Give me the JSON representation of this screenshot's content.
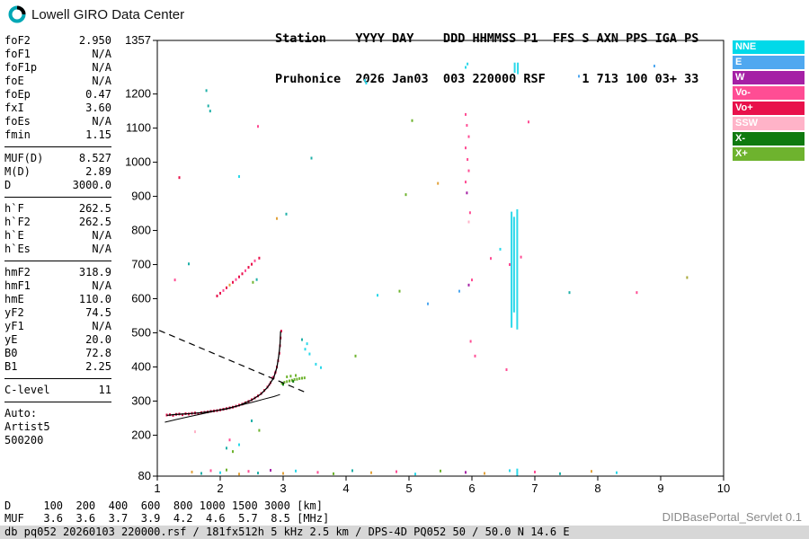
{
  "header": {
    "brand": "Lowell GIRO Data Center",
    "station_line1": "Station    YYYY DAY    DDD HHMMSS P1  FFS S AXN PPS IGA PS",
    "station_line2": "Pruhonice  2026 Jan03  003 220000 RSF     1 713 100 03+ 33"
  },
  "parameters": {
    "groups": [
      {
        "rows": [
          [
            "foF2",
            "2.950"
          ],
          [
            "foF1",
            "N/A"
          ],
          [
            "foF1p",
            "N/A"
          ],
          [
            "foE",
            "N/A"
          ],
          [
            "foEp",
            "0.47"
          ],
          [
            "fxI",
            "3.60"
          ],
          [
            "foEs",
            "N/A"
          ],
          [
            "fmin",
            "1.15"
          ]
        ]
      },
      {
        "rows": [
          [
            "MUF(D)",
            "8.527"
          ],
          [
            "M(D)",
            "2.89"
          ],
          [
            "D",
            "3000.0"
          ]
        ]
      },
      {
        "rows": [
          [
            "h`F",
            "262.5"
          ],
          [
            "h`F2",
            "262.5"
          ],
          [
            "h`E",
            "N/A"
          ],
          [
            "h`Es",
            "N/A"
          ]
        ]
      },
      {
        "rows": [
          [
            "hmF2",
            "318.9"
          ],
          [
            "hmF1",
            "N/A"
          ],
          [
            "hmE",
            "110.0"
          ],
          [
            "yF2",
            "74.5"
          ],
          [
            "yF1",
            "N/A"
          ],
          [
            "yE",
            "20.0"
          ],
          [
            "B0",
            "72.8"
          ],
          [
            "B1",
            "2.25"
          ]
        ]
      },
      {
        "rows": [
          [
            "C-level",
            "11"
          ]
        ]
      }
    ],
    "auto_lines": [
      "Auto:",
      "Artist5",
      "500200"
    ]
  },
  "legend": {
    "items": [
      {
        "label": "NNE",
        "color": "#00D9E9"
      },
      {
        "label": "E",
        "color": "#4FA8F0"
      },
      {
        "label": "W",
        "color": "#A520A5"
      },
      {
        "label": "Vo-",
        "color": "#FF4D94"
      },
      {
        "label": "Vo+",
        "color": "#E8114B"
      },
      {
        "label": "SSW",
        "color": "#FFB3C8"
      },
      {
        "label": "X-",
        "color": "#0F7A0F"
      },
      {
        "label": "X+",
        "color": "#6EB32E"
      }
    ]
  },
  "dmuf": {
    "rows": [
      {
        "label": "D",
        "values": [
          "100",
          "200",
          "400",
          "600",
          "800",
          "1000",
          "1500",
          "3000"
        ],
        "unit": "[km]"
      },
      {
        "label": "MUF",
        "values": [
          "3.6",
          "3.6",
          "3.7",
          "3.9",
          "4.2",
          "4.6",
          "5.7",
          "8.5"
        ],
        "unit": "[MHz]"
      }
    ]
  },
  "footer": {
    "status_bar": "db pq052 20260103 220000.rsf / 181fx512h 5 kHz 2.5 km / DPS-4D PQ052 50 / 50.0 N 14.6 E",
    "servlet_version": "DIDBasePortal_Servlet 0.1"
  },
  "chart_data": {
    "type": "scatter",
    "title": "Pruhonice ionogram 2026 Jan03 003 220000",
    "x_unit": "MHz",
    "y_unit": "km",
    "x_range": [
      1,
      10
    ],
    "y_range": [
      80,
      1357
    ],
    "x_ticks": [
      1,
      2,
      3,
      4,
      5,
      6,
      7,
      8,
      9,
      10
    ],
    "y_ticks": [
      1357,
      1200,
      1100,
      1000,
      900,
      800,
      700,
      600,
      500,
      400,
      300,
      200,
      80
    ],
    "grid": false,
    "legend_position": "right",
    "colors": {
      "c": "#2BD8EA",
      "b": "#4FA8F0",
      "m": "#A520A5",
      "p": "#FF4D94",
      "r": "#E8114B",
      "s": "#FFB3C8",
      "g": "#0F7A0F",
      "G": "#6EB32E",
      "t": "#1FB0A8",
      "o": "#E2A33C",
      "y": "#A8A838",
      "k": "#000000"
    },
    "o_trace_echoes": [
      [
        1.15,
        259,
        "r"
      ],
      [
        1.2,
        260,
        "r"
      ],
      [
        1.25,
        258,
        "r"
      ],
      [
        1.3,
        261,
        "r"
      ],
      [
        1.35,
        262,
        "r"
      ],
      [
        1.4,
        260,
        "r"
      ],
      [
        1.45,
        263,
        "r"
      ],
      [
        1.5,
        262,
        "r"
      ],
      [
        1.55,
        264,
        "r"
      ],
      [
        1.6,
        265,
        "r"
      ],
      [
        1.65,
        263,
        "r"
      ],
      [
        1.7,
        266,
        "r"
      ],
      [
        1.75,
        267,
        "r"
      ],
      [
        1.8,
        268,
        "r"
      ],
      [
        1.85,
        270,
        "r"
      ],
      [
        1.9,
        271,
        "r"
      ],
      [
        1.95,
        272,
        "r"
      ],
      [
        2.0,
        274,
        "r"
      ],
      [
        2.05,
        276,
        "r"
      ],
      [
        2.1,
        278,
        "r"
      ],
      [
        2.15,
        280,
        "r"
      ],
      [
        2.2,
        282,
        "r"
      ],
      [
        2.25,
        285,
        "r"
      ],
      [
        2.3,
        288,
        "r"
      ],
      [
        2.35,
        291,
        "r"
      ],
      [
        2.4,
        295,
        "r"
      ],
      [
        2.45,
        299,
        "r"
      ],
      [
        2.5,
        304,
        "r"
      ],
      [
        2.55,
        309,
        "r"
      ],
      [
        2.6,
        315,
        "r"
      ],
      [
        2.65,
        322,
        "r"
      ],
      [
        2.7,
        331,
        "r"
      ],
      [
        2.75,
        341,
        "r"
      ],
      [
        2.78,
        348,
        "p"
      ],
      [
        2.8,
        354,
        "r"
      ],
      [
        2.83,
        368,
        "p"
      ],
      [
        2.85,
        370,
        "r"
      ],
      [
        2.87,
        382,
        "p"
      ],
      [
        2.88,
        385,
        "r"
      ],
      [
        2.9,
        400,
        "r"
      ],
      [
        2.92,
        418,
        "r"
      ],
      [
        2.94,
        440,
        "r"
      ],
      [
        2.95,
        462,
        "r"
      ],
      [
        2.96,
        485,
        "r"
      ],
      [
        2.97,
        505,
        "r"
      ]
    ],
    "x_trace_echoes": [
      [
        2.98,
        352,
        "G"
      ],
      [
        3.0,
        349,
        "g"
      ],
      [
        3.02,
        355,
        "G"
      ],
      [
        3.06,
        357,
        "G"
      ],
      [
        3.06,
        371,
        "G"
      ],
      [
        3.1,
        359,
        "G"
      ],
      [
        3.12,
        373,
        "G"
      ],
      [
        3.14,
        361,
        "G"
      ],
      [
        3.16,
        358,
        "g"
      ],
      [
        3.18,
        363,
        "G"
      ],
      [
        3.2,
        375,
        "G"
      ],
      [
        3.22,
        364,
        "G"
      ],
      [
        3.26,
        366,
        "G"
      ],
      [
        3.3,
        367,
        "G"
      ],
      [
        3.34,
        368,
        "G"
      ]
    ],
    "noise_echoes": [
      [
        1.81,
        1165,
        "t"
      ],
      [
        1.84,
        1150,
        "t"
      ],
      [
        1.78,
        1210,
        "t"
      ],
      [
        2.6,
        1105,
        "p"
      ],
      [
        4.3,
        1240,
        "c"
      ],
      [
        4.32,
        1232,
        "c"
      ],
      [
        5.93,
        1288,
        "c"
      ],
      [
        5.9,
        1278,
        "c"
      ],
      [
        7.7,
        1252,
        "b"
      ],
      [
        8.9,
        1282,
        "b"
      ],
      [
        5.05,
        1122,
        "G"
      ],
      [
        6.9,
        1118,
        "p"
      ],
      [
        3.45,
        1012,
        "t"
      ],
      [
        2.3,
        958,
        "c"
      ],
      [
        1.35,
        955,
        "r"
      ],
      [
        5.46,
        938,
        "o"
      ],
      [
        4.95,
        905,
        "G"
      ],
      [
        5.9,
        1140,
        "p"
      ],
      [
        5.92,
        1108,
        "p"
      ],
      [
        5.95,
        1075,
        "p"
      ],
      [
        5.9,
        1042,
        "p"
      ],
      [
        5.93,
        1008,
        "p"
      ],
      [
        5.95,
        975,
        "p"
      ],
      [
        5.9,
        942,
        "p"
      ],
      [
        5.92,
        910,
        "m"
      ],
      [
        5.97,
        852,
        "p"
      ],
      [
        5.95,
        825,
        "s"
      ],
      [
        2.9,
        835,
        "o"
      ],
      [
        3.05,
        848,
        "t"
      ],
      [
        1.5,
        702,
        "t"
      ],
      [
        1.28,
        655,
        "p"
      ],
      [
        2.52,
        648,
        "G"
      ],
      [
        2.58,
        656,
        "t"
      ],
      [
        4.85,
        622,
        "G"
      ],
      [
        4.5,
        610,
        "c"
      ],
      [
        5.3,
        585,
        "b"
      ],
      [
        5.8,
        622,
        "b"
      ],
      [
        5.95,
        640,
        "m"
      ],
      [
        6.0,
        655,
        "p"
      ],
      [
        6.3,
        718,
        "p"
      ],
      [
        6.45,
        745,
        "c"
      ],
      [
        6.6,
        700,
        "p"
      ],
      [
        6.78,
        722,
        "p"
      ],
      [
        7.55,
        618,
        "t"
      ],
      [
        8.62,
        618,
        "p"
      ],
      [
        9.42,
        662,
        "y"
      ],
      [
        1.95,
        608,
        "r"
      ],
      [
        2.0,
        616,
        "r"
      ],
      [
        2.05,
        624,
        "p"
      ],
      [
        2.1,
        632,
        "r"
      ],
      [
        2.15,
        640,
        "o"
      ],
      [
        2.2,
        648,
        "r"
      ],
      [
        2.25,
        656,
        "p"
      ],
      [
        2.3,
        664,
        "r"
      ],
      [
        2.35,
        673,
        "r"
      ],
      [
        2.4,
        682,
        "p"
      ],
      [
        2.45,
        692,
        "r"
      ],
      [
        2.5,
        701,
        "r"
      ],
      [
        2.55,
        711,
        "p"
      ],
      [
        2.62,
        719,
        "r"
      ],
      [
        3.35,
        452,
        "c"
      ],
      [
        3.42,
        438,
        "c"
      ],
      [
        3.38,
        468,
        "c"
      ],
      [
        3.3,
        480,
        "t"
      ],
      [
        4.15,
        432,
        "G"
      ],
      [
        6.55,
        392,
        "p"
      ],
      [
        6.05,
        432,
        "p"
      ],
      [
        5.98,
        475,
        "p"
      ],
      [
        3.6,
        398,
        "c"
      ],
      [
        3.52,
        408,
        "c"
      ],
      [
        2.1,
        162,
        "t"
      ],
      [
        2.2,
        152,
        "G"
      ],
      [
        2.3,
        172,
        "c"
      ],
      [
        2.15,
        186,
        "p"
      ],
      [
        2.5,
        242,
        "t"
      ],
      [
        2.62,
        214,
        "G"
      ],
      [
        1.6,
        210,
        "s"
      ],
      [
        1.55,
        92,
        "o"
      ],
      [
        1.7,
        88,
        "t"
      ],
      [
        1.85,
        96,
        "p"
      ],
      [
        2.0,
        90,
        "c"
      ],
      [
        2.1,
        98,
        "G"
      ],
      [
        2.3,
        86,
        "o"
      ],
      [
        2.45,
        94,
        "p"
      ],
      [
        2.6,
        89,
        "t"
      ],
      [
        2.8,
        97,
        "m"
      ],
      [
        3.0,
        88,
        "o"
      ],
      [
        3.2,
        95,
        "c"
      ],
      [
        3.55,
        91,
        "p"
      ],
      [
        3.8,
        87,
        "G"
      ],
      [
        4.1,
        96,
        "t"
      ],
      [
        4.4,
        90,
        "o"
      ],
      [
        4.8,
        93,
        "p"
      ],
      [
        5.1,
        86,
        "c"
      ],
      [
        5.5,
        95,
        "G"
      ],
      [
        5.9,
        91,
        "m"
      ],
      [
        6.2,
        88,
        "o"
      ],
      [
        6.6,
        96,
        "c"
      ],
      [
        7.0,
        92,
        "p"
      ],
      [
        7.4,
        87,
        "t"
      ],
      [
        7.9,
        94,
        "o"
      ],
      [
        8.3,
        90,
        "c"
      ]
    ],
    "rfi_stripes": [
      [
        6.63,
        515,
        855,
        "c"
      ],
      [
        6.72,
        510,
        862,
        "c"
      ],
      [
        6.67,
        560,
        840,
        "c"
      ],
      [
        6.68,
        1262,
        1292,
        "c"
      ],
      [
        6.73,
        1258,
        1292,
        "c"
      ],
      [
        6.72,
        80,
        102,
        "c"
      ]
    ],
    "trace_line": [
      [
        1.15,
        258
      ],
      [
        1.3,
        261
      ],
      [
        1.5,
        263
      ],
      [
        1.7,
        266
      ],
      [
        1.9,
        271
      ],
      [
        2.1,
        277
      ],
      [
        2.3,
        287
      ],
      [
        2.5,
        303
      ],
      [
        2.65,
        321
      ],
      [
        2.75,
        340
      ],
      [
        2.85,
        368
      ],
      [
        2.9,
        398
      ],
      [
        2.93,
        432
      ],
      [
        2.95,
        465
      ],
      [
        2.96,
        505
      ]
    ],
    "profile_line": [
      [
        1.12,
        238
      ],
      [
        1.3,
        246
      ],
      [
        1.5,
        254
      ],
      [
        1.7,
        262
      ],
      [
        1.9,
        270
      ],
      [
        2.1,
        278
      ],
      [
        2.3,
        287
      ],
      [
        2.5,
        296
      ],
      [
        2.7,
        306
      ],
      [
        2.85,
        313
      ],
      [
        2.95,
        319
      ]
    ],
    "muf_dashed": [
      [
        1.03,
        507
      ],
      [
        3.35,
        326
      ]
    ]
  }
}
